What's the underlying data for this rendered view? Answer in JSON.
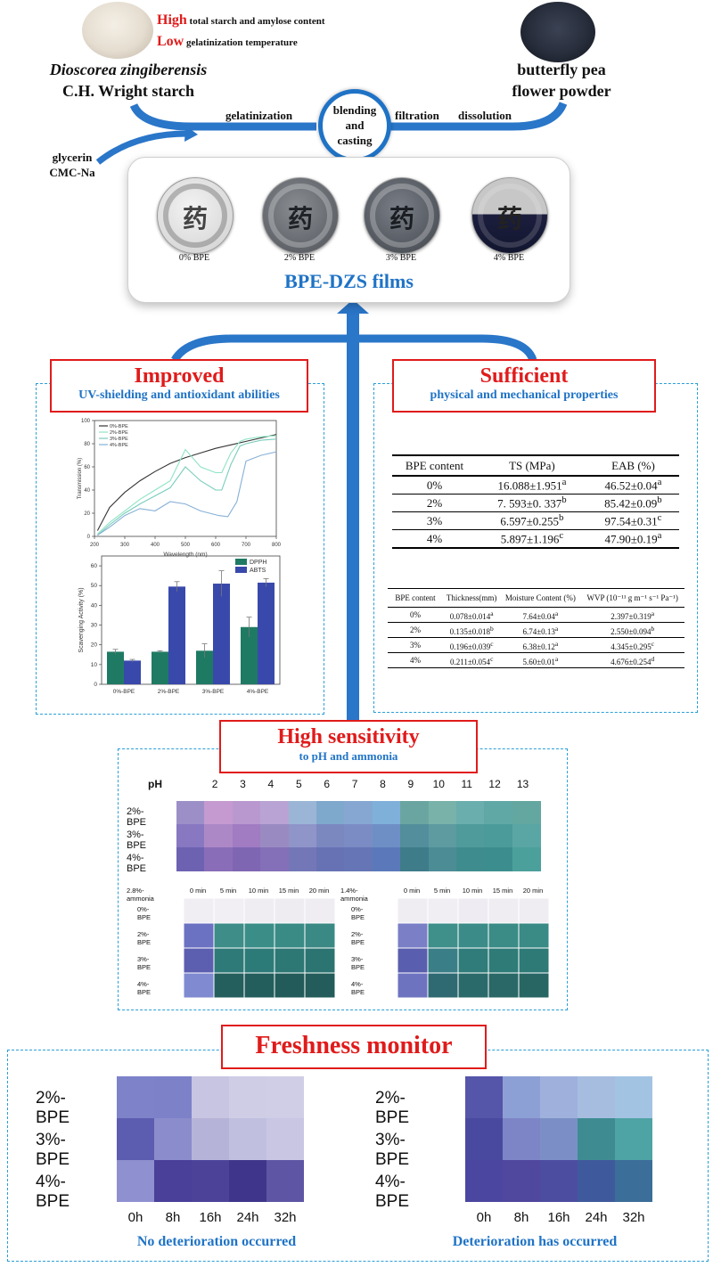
{
  "top": {
    "high_word": "High",
    "high_rest": "total starch and amylose content",
    "low_word": "Low",
    "low_rest": "gelatinization temperature",
    "starch_name_italic": "Dioscorea zingiberensis",
    "starch_name_rest": "C.H. Wright starch",
    "flower_line1": "butterfly pea",
    "flower_line2": "flower powder",
    "gelatinization": "gelatinization",
    "filtration": "filtration",
    "dissolution": "dissolution",
    "center_line1": "blending",
    "center_line2": "and",
    "center_line3": "casting",
    "glycerin": "glycerin",
    "cmc": "CMC-Na",
    "film_labels": [
      "0% BPE",
      "2% BPE",
      "3% BPE",
      "4% BPE"
    ],
    "films_title": "BPE-DZS films"
  },
  "improved": {
    "title": "Improved",
    "subtitle": "UV-shielding and antioxidant abilities"
  },
  "sufficient": {
    "title": "Sufficient",
    "subtitle": "physical and mechanical properties"
  },
  "chart_data": [
    {
      "type": "line",
      "xlabel": "Wavelength (nm)",
      "ylabel": "Transmission (%)",
      "xlim": [
        200,
        800
      ],
      "ylim": [
        0,
        100
      ],
      "xticks": [
        "200",
        "300",
        "400",
        "500",
        "600",
        "700",
        "800"
      ],
      "yticks": [
        "0",
        "20",
        "40",
        "60",
        "80",
        "100"
      ],
      "legend_position": "top-left",
      "series": [
        {
          "name": "0%-BPE",
          "color": "#333333",
          "x": [
            210,
            250,
            300,
            350,
            400,
            450,
            500,
            550,
            600,
            650,
            700,
            750,
            800
          ],
          "y": [
            5,
            25,
            38,
            48,
            56,
            63,
            68,
            72,
            76,
            79,
            82,
            85,
            88
          ]
        },
        {
          "name": "2%-BPE",
          "color": "#8ee3c4",
          "x": [
            210,
            250,
            300,
            350,
            400,
            450,
            500,
            550,
            600,
            620,
            650,
            680,
            700,
            750,
            800
          ],
          "y": [
            2,
            12,
            22,
            32,
            40,
            48,
            75,
            60,
            55,
            55,
            72,
            82,
            84,
            86,
            87
          ]
        },
        {
          "name": "3%-BPE",
          "color": "#79cdbb",
          "x": [
            210,
            250,
            300,
            350,
            400,
            450,
            500,
            550,
            600,
            620,
            650,
            680,
            700,
            750,
            800
          ],
          "y": [
            1,
            10,
            20,
            28,
            35,
            42,
            60,
            48,
            40,
            40,
            62,
            78,
            80,
            83,
            84
          ]
        },
        {
          "name": "4%-BPE",
          "color": "#86b0d6",
          "x": [
            210,
            250,
            300,
            350,
            400,
            450,
            500,
            550,
            580,
            610,
            640,
            670,
            700,
            750,
            800
          ],
          "y": [
            1,
            8,
            18,
            24,
            22,
            30,
            28,
            22,
            20,
            18,
            17,
            30,
            65,
            70,
            73
          ]
        }
      ]
    },
    {
      "type": "bar",
      "ylabel": "Scavenging Activity (%)",
      "ylim": [
        0,
        65
      ],
      "yticks": [
        "0",
        "10",
        "20",
        "30",
        "40",
        "50",
        "60"
      ],
      "categories": [
        "0%-BPE",
        "2%-BPE",
        "3%-BPE",
        "4%-BPE"
      ],
      "legend_position": "top-right",
      "series": [
        {
          "name": "DPPH",
          "color": "#1f7a64",
          "values": [
            16.5,
            16.5,
            17,
            29
          ],
          "errors": [
            1.2,
            0.5,
            3.5,
            5
          ]
        },
        {
          "name": "ABTS",
          "color": "#3949ab",
          "values": [
            12,
            49.5,
            51,
            51.5
          ],
          "errors": [
            0.6,
            2.5,
            6.5,
            2
          ]
        }
      ]
    }
  ],
  "table1": {
    "headers": [
      "BPE content",
      "TS (MPa)",
      "EAB (%)"
    ],
    "rows": [
      {
        "c": "0%",
        "ts": "16.088±1.951",
        "ts_sup": "a",
        "eab": "46.52±0.04",
        "eab_sup": "a"
      },
      {
        "c": "2%",
        "ts": "7. 593±0. 337",
        "ts_sup": "b",
        "eab": "85.42±0.09",
        "eab_sup": "b"
      },
      {
        "c": "3%",
        "ts": "6.597±0.255",
        "ts_sup": "b",
        "eab": "97.54±0.31",
        "eab_sup": "c"
      },
      {
        "c": "4%",
        "ts": "5.897±1.196",
        "ts_sup": "c",
        "eab": "47.90±0.19",
        "eab_sup": "a"
      }
    ]
  },
  "table2": {
    "headers": [
      "BPE content",
      "Thickness(mm)",
      "Moisture Content (%)",
      "WVP (10⁻¹¹ g m⁻¹ s⁻¹ Pa⁻¹)"
    ],
    "rows": [
      {
        "c": "0%",
        "t": "0.078±0.014",
        "ts": "a",
        "m": "7.64±0.04",
        "ms": "a",
        "w": "2.397±0.319",
        "ws": "a"
      },
      {
        "c": "2%",
        "t": "0.135±0.018",
        "ts": "b",
        "m": "6.74±0.13",
        "ms": "a",
        "w": "2.550±0.094",
        "ws": "b"
      },
      {
        "c": "3%",
        "t": "0.196±0.039",
        "ts": "c",
        "m": "6.38±0.12",
        "ms": "a",
        "w": "4.345±0.295",
        "ws": "c"
      },
      {
        "c": "4%",
        "t": "0.211±0.054",
        "ts": "c",
        "m": "5.60±0.01",
        "ms": "a",
        "w": "4.676±0.254",
        "ws": "d"
      }
    ]
  },
  "sensitivity": {
    "title": "High sensitivity",
    "subtitle": "to pH and ammonia",
    "ph_label": "pH",
    "ph_values": [
      "2",
      "3",
      "4",
      "5",
      "6",
      "7",
      "8",
      "9",
      "10",
      "11",
      "12",
      "13"
    ],
    "rows": [
      "2%-BPE",
      "3%-BPE",
      "4%-BPE"
    ],
    "ammonia_left": "2.8%-ammonia",
    "ammonia_right": "1.4%-ammonia",
    "minutes": [
      "0 min",
      "5 min",
      "10 min",
      "15 min",
      "20 min"
    ],
    "amm_rows": [
      "0%-BPE",
      "2%-BPE",
      "3%-BPE",
      "4%-BPE"
    ]
  },
  "freshness": {
    "title": "Freshness monitor",
    "rows": [
      "2%-BPE",
      "3%-BPE",
      "4%-BPE"
    ],
    "hours": [
      "0h",
      "8h",
      "16h",
      "24h",
      "32h"
    ],
    "left_caption": "No deterioration occurred",
    "right_caption": "Deterioration has occurred"
  },
  "colors": {
    "accent_blue": "#1f73c6",
    "accent_red": "#e01b1b",
    "dash_blue": "#2a9fd8"
  }
}
